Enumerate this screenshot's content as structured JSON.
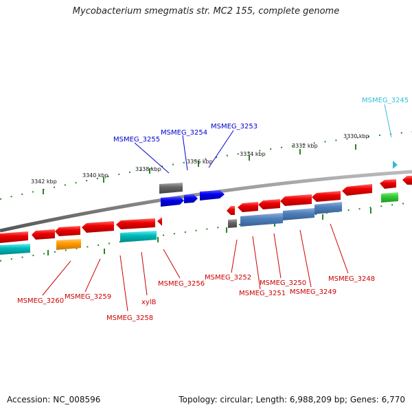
{
  "title": "Mycobacterium smegmatis str. MC2 155, complete genome",
  "footer": {
    "accession": "Accession: NC_008596",
    "topology": "Topology: circular; Length: 6,988,209 bp; Genes: 6,770"
  },
  "colors": {
    "label_red": "#cc0000",
    "label_blue": "#0000cc",
    "label_cyan": "#33bbdd",
    "gene_red": "#ee0000",
    "gene_blue": "#0000ee",
    "gene_gray": "#666666",
    "gene_cyan": "#00bbbb",
    "gene_orange": "#ff9900",
    "gene_steelblue": "#4f81bd",
    "gene_green": "#33cc33",
    "backbone": "#888888",
    "ticks": "#228822"
  },
  "kbp_labels": [
    "3330 kbp",
    "3332 kbp",
    "3334 kbp",
    "3336 kbp",
    "3338 kbp",
    "3340 kbp",
    "3342 kbp"
  ],
  "gene_labels": {
    "MSMEG_3245": "MSMEG_3245",
    "MSMEG_3248": "MSMEG_3248",
    "MSMEG_3249": "MSMEG_3249",
    "MSMEG_3250": "MSMEG_3250",
    "MSMEG_3251": "MSMEG_3251",
    "MSMEG_3252": "MSMEG_3252",
    "MSMEG_3253": "MSMEG_3253",
    "MSMEG_3254": "MSMEG_3254",
    "MSMEG_3255": "MSMEG_3255",
    "MSMEG_3256": "MSMEG_3256",
    "xylB": "xylB",
    "MSMEG_3258": "MSMEG_3258",
    "MSMEG_3259": "MSMEG_3259",
    "MSMEG_3260": "MSMEG_3260"
  }
}
